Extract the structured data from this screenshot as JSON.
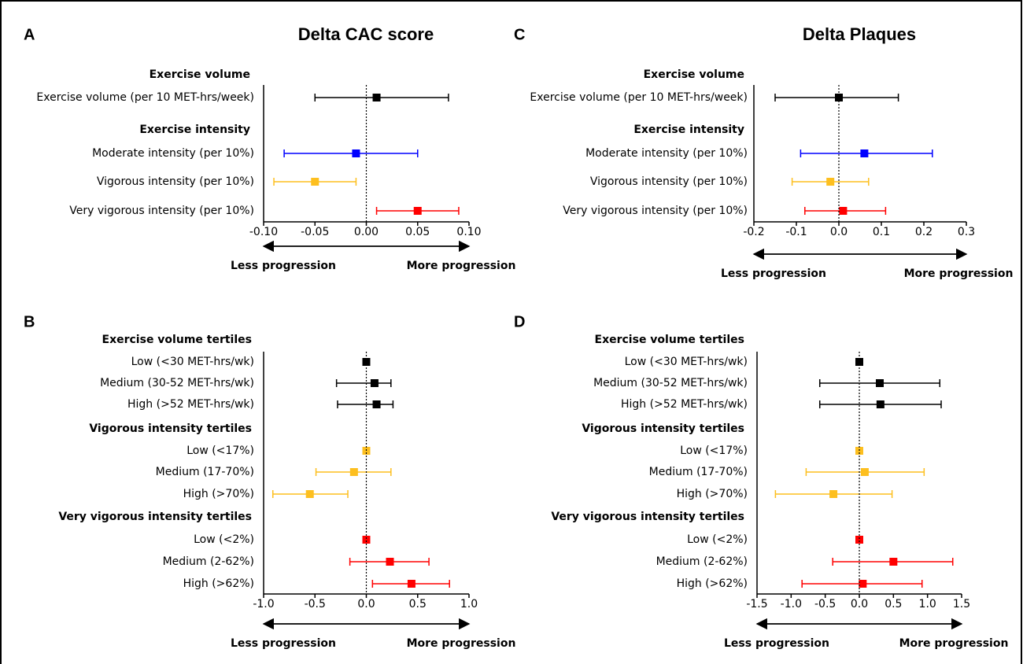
{
  "chart_data": [
    {
      "type": "forest",
      "panel": "A",
      "title": "Delta CAC score",
      "groups": [
        {
          "name": "Exercise volume",
          "categories": [
            "Exercise volume (per 10 MET-hrs/week)"
          ],
          "colors": [
            "#000000"
          ],
          "values": [
            0.01
          ],
          "lower": [
            -0.05
          ],
          "upper": [
            0.08
          ]
        },
        {
          "name": "Exercise intensity",
          "categories": [
            "Moderate intensity (per 10%)",
            "Vigorous intensity (per 10%)",
            "Very vigorous intensity (per 10%)"
          ],
          "colors": [
            "#0000ff",
            "#fdbf1f",
            "#ff0000"
          ],
          "values": [
            -0.01,
            -0.05,
            0.05
          ],
          "lower": [
            -0.08,
            -0.09,
            0.01
          ],
          "upper": [
            0.05,
            -0.01,
            0.09
          ]
        }
      ],
      "xlim": [
        -0.1,
        0.1
      ],
      "xticks": [
        {
          "value": -0.1,
          "label": "-0.10"
        },
        -0.05,
        {
          "value": 0,
          "label": "0.00"
        },
        0.05,
        {
          "value": 0.1,
          "label": "0.10"
        }
      ],
      "reference_line": 0,
      "arrow_labels": [
        "Less progression",
        "More progression"
      ]
    },
    {
      "type": "forest",
      "panel": "B",
      "groups": [
        {
          "name": "Exercise volume tertiles",
          "categories": [
            "Low (<30 MET-hrs/wk)",
            "Medium (30-52 MET-hrs/wk)",
            "High (>52 MET-hrs/wk)"
          ],
          "colors": [
            "#000000",
            "#000000",
            "#000000"
          ],
          "values": [
            0,
            0.08,
            0.1
          ],
          "lower": [
            null,
            -0.29,
            -0.28
          ],
          "upper": [
            null,
            0.24,
            0.26
          ]
        },
        {
          "name": "Vigorous intensity tertiles",
          "categories": [
            "Low (<17%)",
            "Medium (17-70%)",
            "High (>70%)"
          ],
          "colors": [
            "#fdbf1f",
            "#fdbf1f",
            "#fdbf1f"
          ],
          "values": [
            0,
            -0.12,
            -0.55
          ],
          "lower": [
            null,
            -0.49,
            -0.91
          ],
          "upper": [
            null,
            0.24,
            -0.18
          ]
        },
        {
          "name": "Very vigorous intensity tertiles",
          "categories": [
            "Low (<2%)",
            "Medium (2-62%)",
            "High (>62%)"
          ],
          "colors": [
            "#ff0000",
            "#ff0000",
            "#ff0000"
          ],
          "values": [
            0,
            0.23,
            0.44
          ],
          "lower": [
            null,
            -0.16,
            0.06
          ],
          "upper": [
            null,
            0.61,
            0.81
          ]
        }
      ],
      "xlim": [
        -1,
        1
      ],
      "xticks": [
        {
          "value": -1,
          "label": "-1.0"
        },
        -0.5,
        {
          "value": 0,
          "label": "0.0"
        },
        0.5,
        {
          "value": 1,
          "label": "1.0"
        }
      ],
      "reference_line": 0,
      "arrow_labels": [
        "Less progression",
        "More progression"
      ]
    },
    {
      "type": "forest",
      "panel": "C",
      "title": "Delta Plaques",
      "groups": [
        {
          "name": "Exercise volume",
          "categories": [
            "Exercise volume (per 10 MET-hrs/week)"
          ],
          "colors": [
            "#000000"
          ],
          "values": [
            0
          ],
          "lower": [
            -0.15
          ],
          "upper": [
            0.14
          ]
        },
        {
          "name": "Exercise intensity",
          "categories": [
            "Moderate intensity (per 10%)",
            "Vigorous intensity (per 10%)",
            "Very vigorous intensity (per 10%)"
          ],
          "colors": [
            "#0000ff",
            "#fdbf1f",
            "#ff0000"
          ],
          "values": [
            0.06,
            -0.02,
            0.01
          ],
          "lower": [
            -0.09,
            -0.11,
            -0.08
          ],
          "upper": [
            0.22,
            0.07,
            0.11
          ]
        }
      ],
      "xlim": [
        -0.2,
        0.3
      ],
      "xticks": [
        -0.2,
        -0.1,
        {
          "value": 0,
          "label": "0.0"
        },
        0.1,
        0.2,
        0.3
      ],
      "reference_line": 0,
      "arrow_labels": [
        "Less progression",
        "More progression"
      ]
    },
    {
      "type": "forest",
      "panel": "D",
      "groups": [
        {
          "name": "Exercise volume tertiles",
          "categories": [
            "Low (<30 MET-hrs/wk)",
            "Medium (30-52 MET-hrs/wk)",
            "High (>52 MET-hrs/wk)"
          ],
          "colors": [
            "#000000",
            "#000000",
            "#000000"
          ],
          "values": [
            0,
            0.3,
            0.31
          ],
          "lower": [
            null,
            -0.58,
            -0.58
          ],
          "upper": [
            null,
            1.18,
            1.2
          ]
        },
        {
          "name": "Vigorous intensity tertiles",
          "categories": [
            "Low (<17%)",
            "Medium (17-70%)",
            "High (>70%)"
          ],
          "colors": [
            "#fdbf1f",
            "#fdbf1f",
            "#fdbf1f"
          ],
          "values": [
            0,
            0.08,
            -0.38
          ],
          "lower": [
            null,
            -0.78,
            -1.23
          ],
          "upper": [
            null,
            0.95,
            0.48
          ]
        },
        {
          "name": "Very vigorous intensity tertiles",
          "categories": [
            "Low (<2%)",
            "Medium (2-62%)",
            "High (>62%)"
          ],
          "colors": [
            "#ff0000",
            "#ff0000",
            "#ff0000"
          ],
          "values": [
            0,
            0.5,
            0.05
          ],
          "lower": [
            null,
            -0.39,
            -0.84
          ],
          "upper": [
            null,
            1.37,
            0.92
          ]
        }
      ],
      "xlim": [
        -1.5,
        1.5
      ],
      "xticks": [
        -1.5,
        {
          "value": -1,
          "label": "-1.0"
        },
        -0.5,
        {
          "value": 0,
          "label": "0.0"
        },
        0.5,
        {
          "value": 1,
          "label": "1.0"
        },
        1.5
      ],
      "reference_line": 0,
      "arrow_labels": [
        "Less progression",
        "More progression"
      ]
    }
  ]
}
